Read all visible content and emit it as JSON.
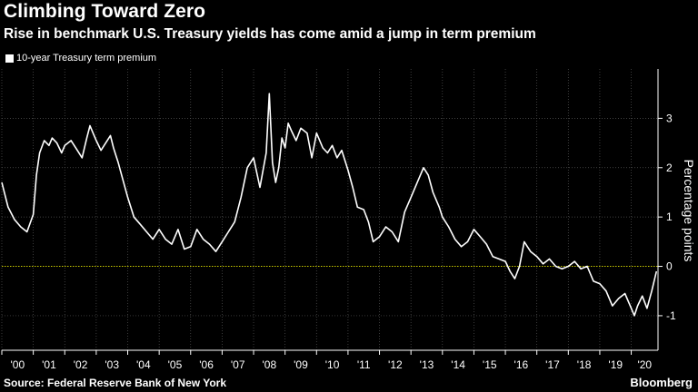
{
  "header": {
    "title": "Climbing Toward Zero",
    "subtitle": "Rise in benchmark U.S. Treasury yields has come amid a jump in term premium"
  },
  "footer": {
    "source": "Source: Federal Reserve Bank of New York",
    "brand": "Bloomberg"
  },
  "colors": {
    "background": "#000000",
    "line": "#ffffff",
    "zero_line": "#c8c800",
    "grid": "#555555"
  },
  "chart_data": {
    "type": "line",
    "title": "Climbing Toward Zero",
    "subtitle": "Rise in benchmark U.S. Treasury yields has come amid a jump in term premium",
    "ylabel": "Percentage points",
    "xlabel": "",
    "ylim": [
      -1.7,
      4.0
    ],
    "xlim": [
      2000.0,
      2020.85
    ],
    "y_ticks": [
      -1,
      0,
      1,
      2,
      3
    ],
    "x_ticks": [
      {
        "year": 2000,
        "label": "'00"
      },
      {
        "year": 2001,
        "label": "'01"
      },
      {
        "year": 2002,
        "label": "'02"
      },
      {
        "year": 2003,
        "label": "'03"
      },
      {
        "year": 2004,
        "label": "'04"
      },
      {
        "year": 2005,
        "label": "'05"
      },
      {
        "year": 2006,
        "label": "'06"
      },
      {
        "year": 2007,
        "label": "'07"
      },
      {
        "year": 2008,
        "label": "'08"
      },
      {
        "year": 2009,
        "label": "'09"
      },
      {
        "year": 2010,
        "label": "'10"
      },
      {
        "year": 2011,
        "label": "'11"
      },
      {
        "year": 2012,
        "label": "'12"
      },
      {
        "year": 2013,
        "label": "'13"
      },
      {
        "year": 2014,
        "label": "'14"
      },
      {
        "year": 2015,
        "label": "'15"
      },
      {
        "year": 2016,
        "label": "'16"
      },
      {
        "year": 2017,
        "label": "'17"
      },
      {
        "year": 2018,
        "label": "'18"
      },
      {
        "year": 2019,
        "label": "'19"
      },
      {
        "year": 2020,
        "label": "'20"
      }
    ],
    "grid": true,
    "legend_position": "top-left",
    "series": [
      {
        "name": "10-year Treasury term premium",
        "x": [
          2000.0,
          2000.2,
          2000.4,
          2000.6,
          2000.8,
          2001.0,
          2001.1,
          2001.2,
          2001.35,
          2001.5,
          2001.6,
          2001.75,
          2001.9,
          2002.0,
          2002.2,
          2002.4,
          2002.55,
          2002.7,
          2002.8,
          2002.9,
          2003.0,
          2003.15,
          2003.3,
          2003.45,
          2003.55,
          2003.7,
          2003.85,
          2004.0,
          2004.2,
          2004.4,
          2004.6,
          2004.8,
          2005.0,
          2005.2,
          2005.4,
          2005.6,
          2005.8,
          2006.0,
          2006.2,
          2006.4,
          2006.6,
          2006.8,
          2007.0,
          2007.2,
          2007.4,
          2007.6,
          2007.8,
          2008.0,
          2008.2,
          2008.4,
          2008.5,
          2008.6,
          2008.7,
          2008.8,
          2008.9,
          2009.0,
          2009.1,
          2009.2,
          2009.35,
          2009.5,
          2009.7,
          2009.85,
          2010.0,
          2010.2,
          2010.35,
          2010.5,
          2010.65,
          2010.8,
          2011.0,
          2011.15,
          2011.3,
          2011.5,
          2011.65,
          2011.8,
          2012.0,
          2012.2,
          2012.4,
          2012.6,
          2012.8,
          2013.0,
          2013.2,
          2013.4,
          2013.55,
          2013.7,
          2013.9,
          2014.0,
          2014.2,
          2014.4,
          2014.6,
          2014.8,
          2015.0,
          2015.2,
          2015.4,
          2015.6,
          2015.8,
          2016.0,
          2016.15,
          2016.3,
          2016.45,
          2016.6,
          2016.8,
          2017.0,
          2017.2,
          2017.4,
          2017.6,
          2017.8,
          2018.0,
          2018.2,
          2018.4,
          2018.6,
          2018.8,
          2019.0,
          2019.2,
          2019.4,
          2019.6,
          2019.8,
          2020.0,
          2020.1,
          2020.2,
          2020.35,
          2020.5,
          2020.65,
          2020.8
        ],
        "values": [
          1.7,
          1.2,
          0.95,
          0.8,
          0.7,
          1.05,
          1.85,
          2.3,
          2.55,
          2.45,
          2.6,
          2.5,
          2.3,
          2.45,
          2.55,
          2.35,
          2.2,
          2.6,
          2.85,
          2.7,
          2.55,
          2.35,
          2.5,
          2.65,
          2.4,
          2.1,
          1.75,
          1.4,
          1.0,
          0.85,
          0.7,
          0.55,
          0.75,
          0.55,
          0.45,
          0.75,
          0.35,
          0.4,
          0.75,
          0.55,
          0.45,
          0.3,
          0.5,
          0.7,
          0.9,
          1.4,
          2.0,
          2.2,
          1.6,
          2.3,
          3.5,
          2.1,
          1.7,
          2.0,
          2.6,
          2.4,
          2.9,
          2.75,
          2.55,
          2.8,
          2.7,
          2.2,
          2.7,
          2.4,
          2.3,
          2.45,
          2.2,
          2.35,
          1.95,
          1.6,
          1.2,
          1.15,
          0.9,
          0.5,
          0.6,
          0.8,
          0.7,
          0.5,
          1.1,
          1.4,
          1.7,
          2.0,
          1.85,
          1.5,
          1.2,
          1.0,
          0.8,
          0.55,
          0.4,
          0.5,
          0.75,
          0.6,
          0.45,
          0.2,
          0.15,
          0.1,
          -0.1,
          -0.25,
          0.0,
          0.5,
          0.3,
          0.2,
          0.05,
          0.15,
          0.0,
          -0.05,
          0.0,
          0.1,
          -0.05,
          0.0,
          -0.3,
          -0.35,
          -0.5,
          -0.8,
          -0.65,
          -0.55,
          -0.85,
          -1.0,
          -0.8,
          -0.6,
          -0.85,
          -0.5,
          -0.1
        ]
      }
    ]
  }
}
